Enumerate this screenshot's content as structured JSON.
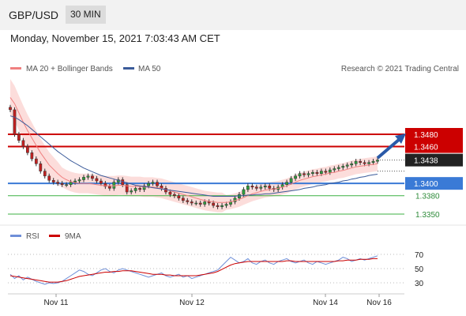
{
  "header": {
    "symbol": "GBP/USD",
    "timeframe": "30 MIN",
    "datetime": "Monday, November 15, 2021 7:03:43 AM CET"
  },
  "legend": {
    "ma20": "MA 20 + Bollinger Bands",
    "ma50": "MA 50",
    "copyright": "Research © 2021 Trading Central",
    "rsi": "RSI",
    "rsi_ma": "9MA"
  },
  "colors": {
    "resistance": "#cc0000",
    "support": "#3a7ad6",
    "target": "#3cb043",
    "ma20": "#f08080",
    "ma50": "#3b5b9a",
    "band": "#fbd5d2",
    "arrow": "#2a5aa8",
    "rsi": "#6f8fd8",
    "rsi_ma": "#cc0000"
  },
  "chart_data": {
    "type": "candlestick",
    "x_ticks": [
      "Nov 11",
      "Nov 12",
      "Nov 14",
      "Nov 16"
    ],
    "price_range": [
      1.3335,
      1.355
    ],
    "levels": [
      {
        "label": "1.3480",
        "value": 1.348,
        "kind": "resistance"
      },
      {
        "label": "1.3460",
        "value": 1.346,
        "kind": "resistance"
      },
      {
        "label": "1.3438",
        "value": 1.3438,
        "kind": "last"
      },
      {
        "label": "1.3400",
        "value": 1.34,
        "kind": "pivot"
      },
      {
        "label": "1.3380",
        "value": 1.338,
        "kind": "support"
      },
      {
        "label": "1.3350",
        "value": 1.335,
        "kind": "support"
      }
    ],
    "close": [
      1.352,
      1.348,
      1.347,
      1.346,
      1.345,
      1.344,
      1.3432,
      1.342,
      1.3412,
      1.3405,
      1.3402,
      1.34,
      1.3398,
      1.3398,
      1.3402,
      1.3404,
      1.3406,
      1.341,
      1.3412,
      1.3408,
      1.3404,
      1.34,
      1.3395,
      1.3392,
      1.3402,
      1.3406,
      1.3398,
      1.3386,
      1.3388,
      1.3392,
      1.339,
      1.3396,
      1.34,
      1.3402,
      1.3396,
      1.3392,
      1.3386,
      1.3382,
      1.338,
      1.3376,
      1.3372,
      1.337,
      1.3368,
      1.3368,
      1.3366,
      1.337,
      1.3368,
      1.3364,
      1.3362,
      1.3364,
      1.3366,
      1.337,
      1.3376,
      1.3382,
      1.339,
      1.3396,
      1.3394,
      1.3392,
      1.3394,
      1.3396,
      1.3392,
      1.339,
      1.3394,
      1.3398,
      1.3402,
      1.3408,
      1.3412,
      1.3416,
      1.3414,
      1.3416,
      1.3418,
      1.3416,
      1.342,
      1.3418,
      1.3422,
      1.3424,
      1.3426,
      1.3428,
      1.343,
      1.3432,
      1.3436,
      1.3434,
      1.3432,
      1.3434,
      1.3436,
      1.3438
    ],
    "ma20": [
      1.354,
      1.353,
      1.3515,
      1.35,
      1.3486,
      1.3474,
      1.3462,
      1.345,
      1.344,
      1.343,
      1.3423,
      1.3416,
      1.341,
      1.3406,
      1.3403,
      1.3401,
      1.34,
      1.34,
      1.34,
      1.3399,
      1.3398,
      1.3397,
      1.3396,
      1.3396,
      1.3396,
      1.3397,
      1.3397,
      1.3396,
      1.3395,
      1.3395,
      1.3395,
      1.3394,
      1.3394,
      1.3394,
      1.3393,
      1.3392,
      1.339,
      1.3388,
      1.3386,
      1.3384,
      1.3382,
      1.338,
      1.3378,
      1.3376,
      1.3374,
      1.3372,
      1.3371,
      1.337,
      1.3369,
      1.3369,
      1.3369,
      1.337,
      1.3372,
      1.3374,
      1.3377,
      1.338,
      1.3383,
      1.3385,
      1.3387,
      1.3389,
      1.339,
      1.3391,
      1.3392,
      1.3394,
      1.3396,
      1.3399,
      1.3402,
      1.3405,
      1.3407,
      1.3409,
      1.3411,
      1.3412,
      1.3414,
      1.3415,
      1.3417,
      1.3418,
      1.342,
      1.3421,
      1.3423,
      1.3425,
      1.3427,
      1.3428,
      1.3429,
      1.343,
      1.3431,
      1.3432
    ],
    "ma50": [
      1.351,
      1.3508,
      1.3504,
      1.3499,
      1.3494,
      1.3488,
      1.3482,
      1.3476,
      1.347,
      1.3464,
      1.3458,
      1.3452,
      1.3447,
      1.3442,
      1.3437,
      1.3433,
      1.3429,
      1.3425,
      1.3422,
      1.3419,
      1.3416,
      1.3413,
      1.3411,
      1.3409,
      1.3407,
      1.3405,
      1.3403,
      1.3401,
      1.3399,
      1.3397,
      1.3396,
      1.3395,
      1.3394,
      1.3393,
      1.3392,
      1.3391,
      1.339,
      1.3389,
      1.3388,
      1.3387,
      1.3386,
      1.3385,
      1.3384,
      1.3383,
      1.3382,
      1.3381,
      1.338,
      1.3379,
      1.3379,
      1.3379,
      1.3379,
      1.3379,
      1.3379,
      1.338,
      1.338,
      1.3381,
      1.3381,
      1.3382,
      1.3382,
      1.3383,
      1.3383,
      1.3384,
      1.3385,
      1.3386,
      1.3387,
      1.3388,
      1.3389,
      1.339,
      1.3392,
      1.3393,
      1.3394,
      1.3396,
      1.3397,
      1.3398,
      1.34,
      1.3401,
      1.3402,
      1.3404,
      1.3405,
      1.3407,
      1.3408,
      1.341,
      1.3411,
      1.3413,
      1.3414,
      1.3415
    ],
    "rsi": [
      42,
      36,
      40,
      34,
      38,
      35,
      32,
      30,
      28,
      30,
      29,
      30,
      32,
      36,
      40,
      44,
      48,
      46,
      42,
      40,
      44,
      48,
      50,
      46,
      44,
      48,
      50,
      48,
      46,
      44,
      42,
      40,
      38,
      40,
      42,
      44,
      40,
      38,
      40,
      42,
      38,
      40,
      36,
      38,
      40,
      42,
      44,
      46,
      48,
      54,
      60,
      66,
      62,
      58,
      60,
      64,
      58,
      56,
      60,
      62,
      58,
      56,
      60,
      62,
      64,
      60,
      58,
      60,
      62,
      58,
      56,
      60,
      58,
      56,
      58,
      60,
      62,
      66,
      64,
      60,
      62,
      64,
      62,
      64,
      66,
      68
    ],
    "rsi_ma": [
      40,
      39,
      38,
      37,
      36,
      35,
      34,
      33,
      32,
      31,
      31,
      31,
      32,
      33,
      35,
      37,
      39,
      40,
      41,
      42,
      43,
      44,
      45,
      45,
      46,
      46,
      47,
      47,
      47,
      46,
      45,
      44,
      43,
      42,
      42,
      42,
      41,
      41,
      40,
      40,
      40,
      40,
      40,
      40,
      41,
      42,
      43,
      44,
      46,
      49,
      52,
      55,
      57,
      58,
      59,
      60,
      60,
      60,
      60,
      60,
      60,
      60,
      60,
      60,
      61,
      61,
      60,
      60,
      60,
      60,
      60,
      60,
      60,
      60,
      60,
      60,
      61,
      61,
      62,
      62,
      62,
      63,
      63,
      63,
      64,
      64
    ],
    "rsi_ticks": [
      "70",
      "50",
      "30"
    ]
  }
}
